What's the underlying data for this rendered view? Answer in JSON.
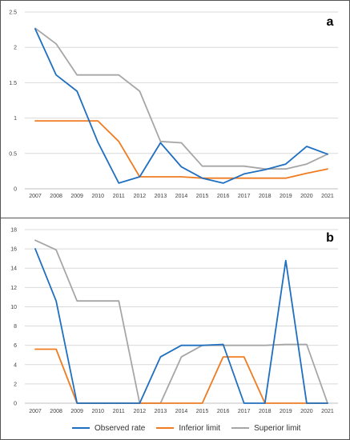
{
  "colors": {
    "observed": "#1f6fc0",
    "inferior": "#f07c22",
    "superior": "#a6a6a6",
    "grid": "#d9d9d9"
  },
  "legend": {
    "observed": "Observed rate",
    "inferior": "Inferior limit",
    "superior": "Superior limit"
  },
  "chart_data": [
    {
      "type": "line",
      "panel_label": "a",
      "x": [
        "2007",
        "2008",
        "2009",
        "2010",
        "2011",
        "2012",
        "2013",
        "2014",
        "2015",
        "2016",
        "2017",
        "2018",
        "2019",
        "2020",
        "2021"
      ],
      "ylim": [
        0,
        2.5
      ],
      "yticks": [
        "0",
        "0.5",
        "1",
        "1.5",
        "2",
        "2.5"
      ],
      "grid": true,
      "legend_position": "bottom",
      "series": [
        {
          "name": "Observed rate",
          "color_key": "observed",
          "values": [
            2.26,
            1.61,
            1.38,
            0.66,
            0.08,
            0.17,
            0.65,
            0.31,
            0.15,
            0.08,
            0.21,
            0.27,
            0.35,
            0.6,
            0.49
          ]
        },
        {
          "name": "Inferior limit",
          "color_key": "inferior",
          "values": [
            0.96,
            0.96,
            0.96,
            0.96,
            0.67,
            0.17,
            0.17,
            0.17,
            0.15,
            0.15,
            0.15,
            0.15,
            0.15,
            0.22,
            0.28
          ]
        },
        {
          "name": "Superior limit",
          "color_key": "superior",
          "values": [
            2.27,
            2.05,
            1.61,
            1.61,
            1.61,
            1.38,
            0.67,
            0.65,
            0.32,
            0.32,
            0.32,
            0.28,
            0.28,
            0.35,
            0.49
          ]
        }
      ]
    },
    {
      "type": "line",
      "panel_label": "b",
      "x": [
        "2007",
        "2008",
        "2009",
        "2010",
        "2011",
        "2012",
        "2013",
        "2014",
        "2015",
        "2016",
        "2017",
        "2018",
        "2019",
        "2020",
        "2021"
      ],
      "ylim": [
        0,
        18
      ],
      "yticks": [
        "0",
        "2",
        "4",
        "6",
        "8",
        "10",
        "12",
        "14",
        "16",
        "18"
      ],
      "grid": true,
      "legend_position": "bottom",
      "series": [
        {
          "name": "Observed rate",
          "color_key": "observed",
          "values": [
            16,
            10.6,
            0,
            0,
            0,
            0,
            4.8,
            6,
            6,
            6.1,
            0,
            0,
            14.8,
            0,
            0
          ]
        },
        {
          "name": "Inferior limit",
          "color_key": "inferior",
          "values": [
            5.6,
            5.6,
            0,
            0,
            0,
            0,
            0,
            0,
            0,
            4.8,
            4.8,
            0,
            0,
            0,
            0
          ]
        },
        {
          "name": "Superior limit",
          "color_key": "superior",
          "values": [
            16.9,
            15.9,
            10.6,
            10.6,
            10.6,
            0,
            0,
            4.8,
            6,
            6,
            6,
            6,
            6.1,
            6.1,
            0
          ]
        }
      ]
    }
  ]
}
